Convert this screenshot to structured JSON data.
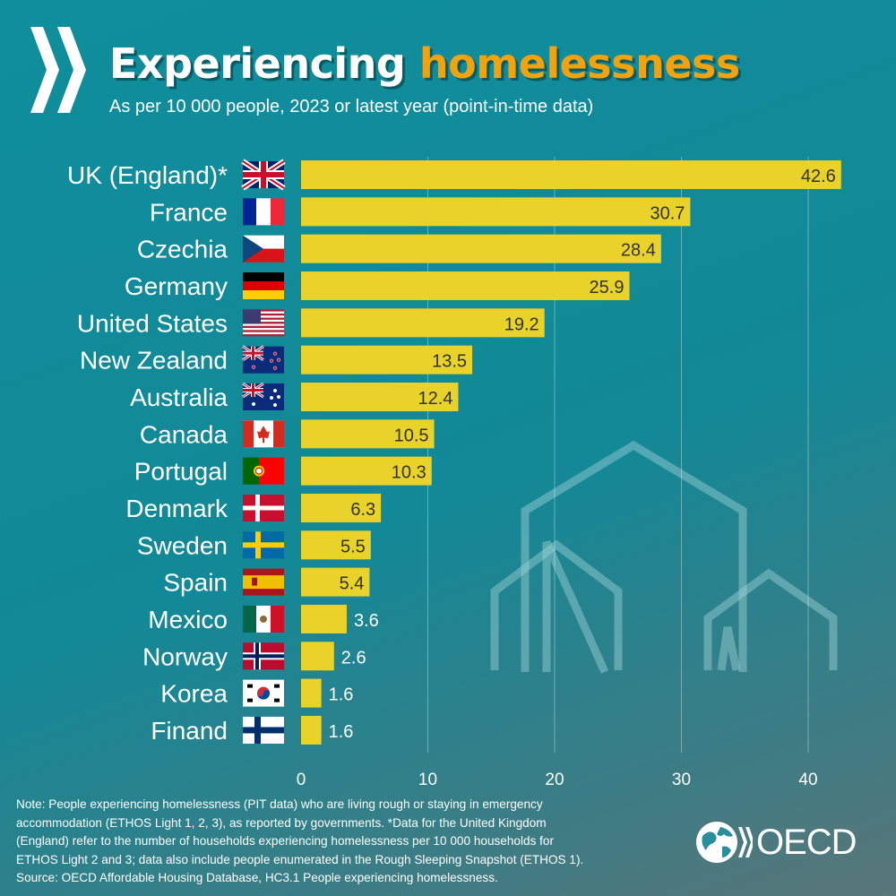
{
  "header": {
    "title_part1": "Experiencing",
    "title_part2": "homelessness",
    "subtitle": "As per 10 000 people, 2023 or latest year (point-in-time data)"
  },
  "chart_data": {
    "type": "bar",
    "orientation": "horizontal",
    "categories": [
      "UK (England)*",
      "France",
      "Czechia",
      "Germany",
      "United States",
      "New Zealand",
      "Australia",
      "Canada",
      "Portugal",
      "Denmark",
      "Sweden",
      "Spain",
      "Mexico",
      "Norway",
      "Korea",
      "Finand"
    ],
    "flags": [
      "uk-flag-icon",
      "france-flag-icon",
      "czechia-flag-icon",
      "germany-flag-icon",
      "usa-flag-icon",
      "new-zealand-flag-icon",
      "australia-flag-icon",
      "canada-flag-icon",
      "portugal-flag-icon",
      "denmark-flag-icon",
      "sweden-flag-icon",
      "spain-flag-icon",
      "mexico-flag-icon",
      "norway-flag-icon",
      "korea-flag-icon",
      "finland-flag-icon"
    ],
    "values": [
      42.6,
      30.7,
      28.4,
      25.9,
      19.2,
      13.5,
      12.4,
      10.5,
      10.3,
      6.3,
      5.5,
      5.4,
      3.6,
      2.6,
      1.6,
      1.6
    ],
    "value_labels": [
      "42.6",
      "30.7",
      "28.4",
      "25.9",
      "19.2",
      "13.5",
      "12.4",
      "10.5",
      "10.3",
      "6.3",
      "5.5",
      "5.4",
      "3.6",
      "2.6",
      "1.6",
      "1.6"
    ],
    "xticks": [
      "0",
      "10",
      "20",
      "30",
      "40"
    ],
    "xlim": [
      0,
      43
    ],
    "grid": true,
    "bar_color": "#e9d32b",
    "xlabel": "",
    "ylabel": ""
  },
  "colors": {
    "background": "#128a96",
    "title_highlight": "#f1a20f"
  },
  "footer": {
    "note_lines": [
      "Note: People experiencing homelessness (PIT data) who are living rough or staying in emergency",
      "accommodation (ETHOS Light 1, 2, 3), as reported by governments. *Data for the United Kingdom",
      "(England) refer to the number of households experiencing homelessness per 10 000 households for",
      "ETHOS Light 2 and 3; data also include people enumerated in the Rough Sleeping Snapshot (ETHOS 1).",
      "Source: OECD Affordable Housing Database, HC3.1 People experiencing homelessness."
    ],
    "logo_text": "OECD"
  }
}
